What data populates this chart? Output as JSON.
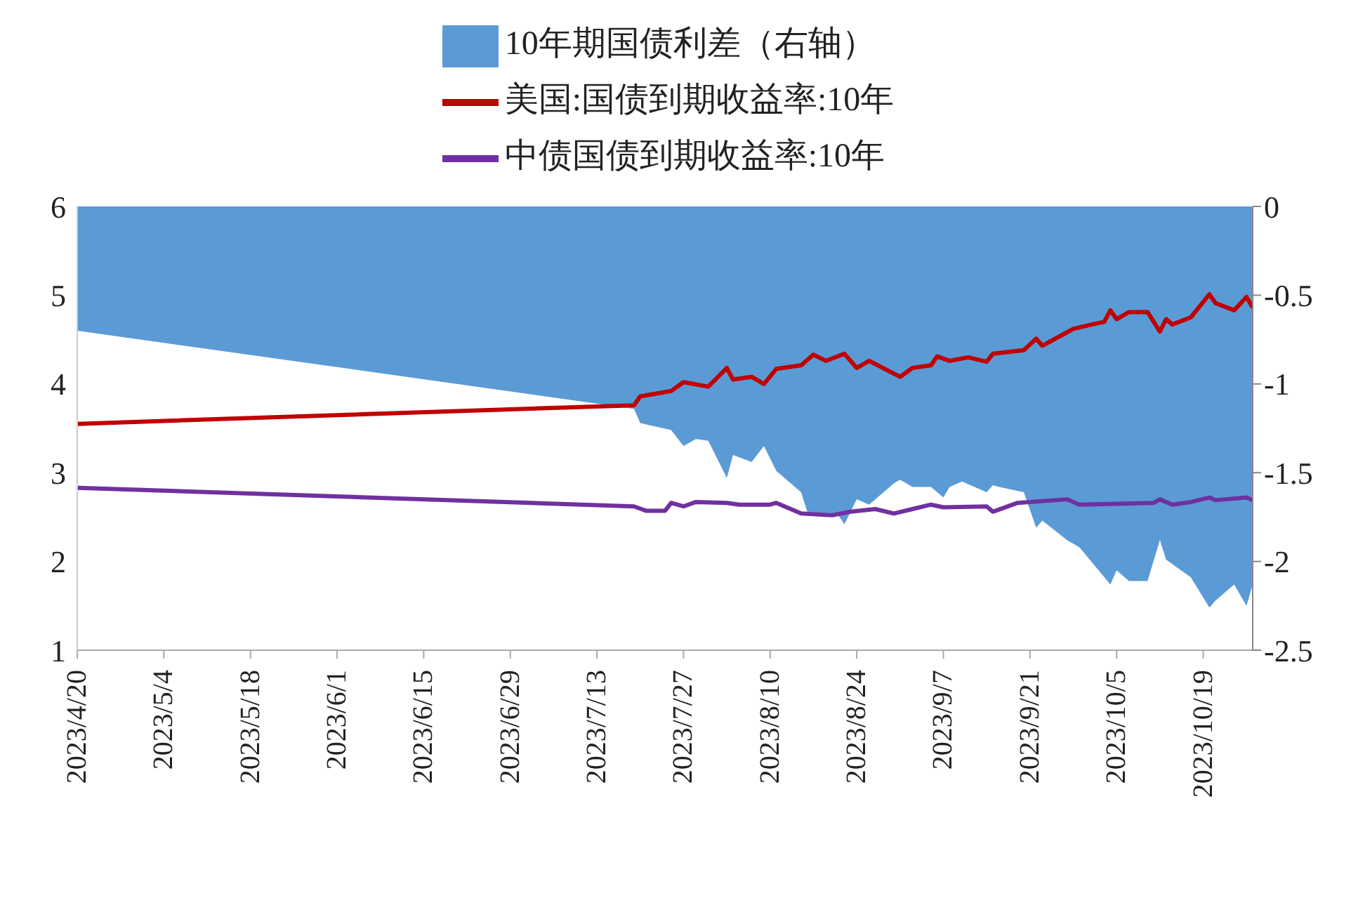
{
  "chart_data": {
    "type": "line",
    "legend": "top",
    "xlim": [
      "2023-04-20",
      "2023-10-27"
    ],
    "xticks": [
      {
        "value": "2023-04-20",
        "label": "2023/4/20"
      },
      {
        "value": "2023-05-04",
        "label": "2023/5/4"
      },
      {
        "value": "2023-05-18",
        "label": "2023/5/18"
      },
      {
        "value": "2023-06-01",
        "label": "2023/6/1"
      },
      {
        "value": "2023-06-15",
        "label": "2023/6/15"
      },
      {
        "value": "2023-06-29",
        "label": "2023/6/29"
      },
      {
        "value": "2023-07-13",
        "label": "2023/7/13"
      },
      {
        "value": "2023-07-27",
        "label": "2023/7/27"
      },
      {
        "value": "2023-08-10",
        "label": "2023/8/10"
      },
      {
        "value": "2023-08-24",
        "label": "2023/8/24"
      },
      {
        "value": "2023-09-07",
        "label": "2023/9/7"
      },
      {
        "value": "2023-09-21",
        "label": "2023/9/21"
      },
      {
        "value": "2023-10-05",
        "label": "2023/10/5"
      },
      {
        "value": "2023-10-19",
        "label": "2023/10/19"
      }
    ],
    "ylim": [
      1,
      6
    ],
    "yticks": [
      1,
      2,
      3,
      4,
      5,
      6
    ],
    "y2lim": [
      -2.5,
      0
    ],
    "y2ticks": [
      -2.5,
      -2,
      -1.5,
      -1,
      -0.5,
      0
    ],
    "series": [
      {
        "name": "10年期国债利差（右轴）",
        "type": "area",
        "axis": "y2",
        "color": "#5b9bd5",
        "x": [
          "2023-04-20",
          "2023-07-19",
          "2023-07-20",
          "2023-07-25",
          "2023-07-27",
          "2023-07-29",
          "2023-07-31",
          "2023-08-03",
          "2023-08-04",
          "2023-08-07",
          "2023-08-09",
          "2023-08-11",
          "2023-08-15",
          "2023-08-16",
          "2023-08-21",
          "2023-08-22",
          "2023-08-24",
          "2023-08-26",
          "2023-08-30",
          "2023-08-31",
          "2023-09-02",
          "2023-09-05",
          "2023-09-07",
          "2023-09-08",
          "2023-09-10",
          "2023-09-14",
          "2023-09-15",
          "2023-09-16",
          "2023-09-20",
          "2023-09-22",
          "2023-09-23",
          "2023-09-27",
          "2023-09-29",
          "2023-10-04",
          "2023-10-05",
          "2023-10-07",
          "2023-10-10",
          "2023-10-12",
          "2023-10-13",
          "2023-10-17",
          "2023-10-20",
          "2023-10-21",
          "2023-10-24",
          "2023-10-26",
          "2023-10-27"
        ],
        "values": [
          -0.7,
          -1.14,
          -1.22,
          -1.26,
          -1.35,
          -1.31,
          -1.32,
          -1.53,
          -1.4,
          -1.44,
          -1.35,
          -1.49,
          -1.61,
          -1.72,
          -1.74,
          -1.79,
          -1.65,
          -1.68,
          -1.56,
          -1.54,
          -1.58,
          -1.58,
          -1.64,
          -1.58,
          -1.55,
          -1.61,
          -1.57,
          -1.58,
          -1.61,
          -1.81,
          -1.77,
          -1.88,
          -1.92,
          -2.13,
          -2.05,
          -2.11,
          -2.11,
          -1.88,
          -1.99,
          -2.09,
          -2.26,
          -2.22,
          -2.13,
          -2.25,
          -2.13
        ]
      },
      {
        "name": "美国:国债到期收益率:10年",
        "color": "#c00000",
        "x": [
          "2023-04-20",
          "2023-07-19",
          "2023-07-20",
          "2023-07-25",
          "2023-07-27",
          "2023-07-31",
          "2023-08-03",
          "2023-08-04",
          "2023-08-07",
          "2023-08-09",
          "2023-08-11",
          "2023-08-15",
          "2023-08-17",
          "2023-08-19",
          "2023-08-22",
          "2023-08-24",
          "2023-08-26",
          "2023-08-31",
          "2023-09-02",
          "2023-09-05",
          "2023-09-06",
          "2023-09-08",
          "2023-09-11",
          "2023-09-14",
          "2023-09-15",
          "2023-09-20",
          "2023-09-22",
          "2023-09-23",
          "2023-09-28",
          "2023-10-01",
          "2023-10-03",
          "2023-10-04",
          "2023-10-05",
          "2023-10-07",
          "2023-10-10",
          "2023-10-12",
          "2023-10-13",
          "2023-10-14",
          "2023-10-17",
          "2023-10-20",
          "2023-10-21",
          "2023-10-24",
          "2023-10-26",
          "2023-10-27"
        ],
        "values": [
          3.55,
          3.76,
          3.86,
          3.92,
          4.02,
          3.97,
          4.18,
          4.05,
          4.08,
          4.0,
          4.17,
          4.21,
          4.33,
          4.26,
          4.34,
          4.18,
          4.26,
          4.08,
          4.18,
          4.21,
          4.31,
          4.26,
          4.3,
          4.25,
          4.34,
          4.38,
          4.51,
          4.43,
          4.62,
          4.67,
          4.7,
          4.83,
          4.73,
          4.81,
          4.81,
          4.59,
          4.73,
          4.67,
          4.75,
          5.01,
          4.91,
          4.83,
          4.98,
          4.86
        ]
      },
      {
        "name": "中债国债到期收益率:10年",
        "color": "#7030a0",
        "x": [
          "2023-04-20",
          "2023-07-19",
          "2023-07-21",
          "2023-07-24",
          "2023-07-25",
          "2023-07-27",
          "2023-07-29",
          "2023-08-03",
          "2023-08-05",
          "2023-08-10",
          "2023-08-11",
          "2023-08-15",
          "2023-08-20",
          "2023-08-23",
          "2023-08-27",
          "2023-08-30",
          "2023-09-02",
          "2023-09-05",
          "2023-09-07",
          "2023-09-14",
          "2023-09-15",
          "2023-09-19",
          "2023-09-27",
          "2023-09-29",
          "2023-10-11",
          "2023-10-12",
          "2023-10-14",
          "2023-10-17",
          "2023-10-20",
          "2023-10-21",
          "2023-10-26",
          "2023-10-27"
        ],
        "values": [
          2.83,
          2.62,
          2.57,
          2.57,
          2.66,
          2.62,
          2.67,
          2.66,
          2.64,
          2.64,
          2.66,
          2.54,
          2.52,
          2.56,
          2.59,
          2.54,
          2.59,
          2.64,
          2.61,
          2.62,
          2.56,
          2.66,
          2.7,
          2.64,
          2.66,
          2.7,
          2.64,
          2.67,
          2.72,
          2.69,
          2.72,
          2.69
        ]
      }
    ]
  }
}
